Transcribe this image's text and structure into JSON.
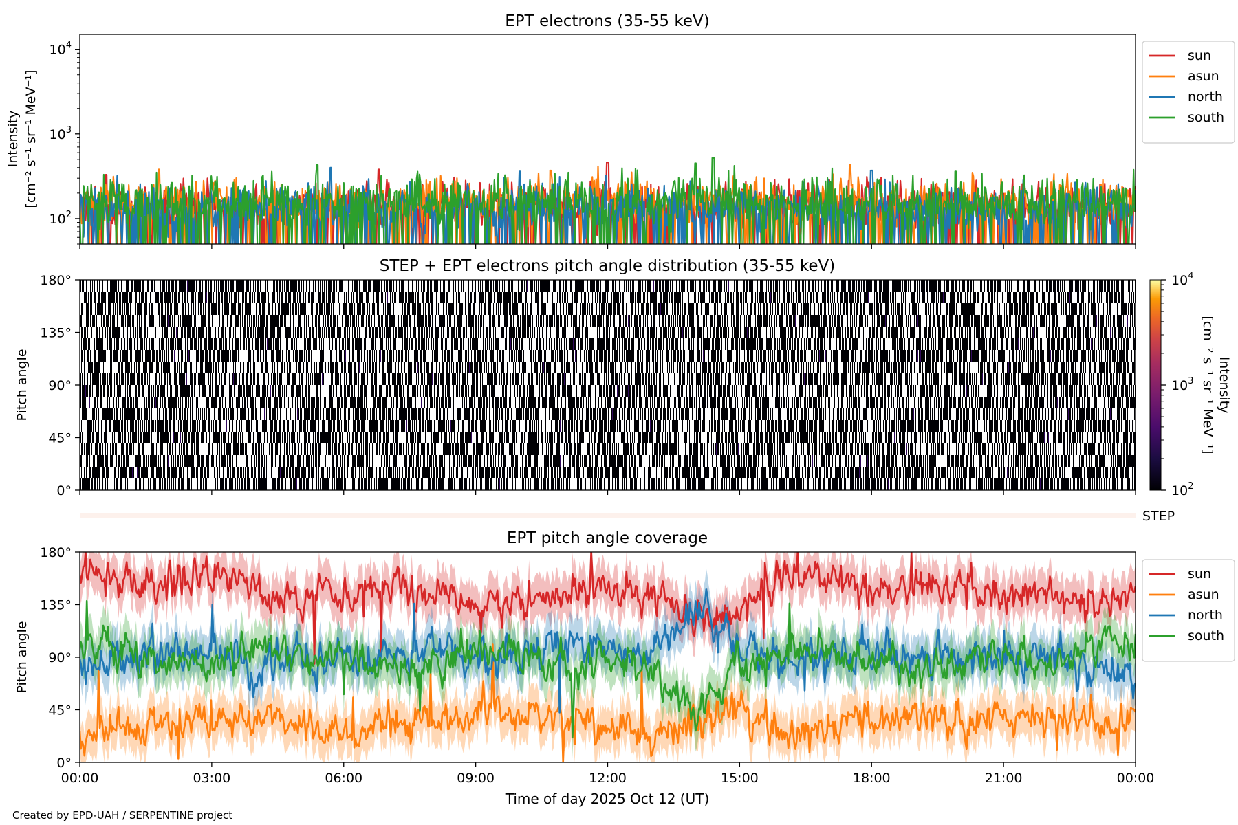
{
  "chart_data": [
    {
      "type": "line",
      "title": "EPT electrons (35-55 keV)",
      "ylabel_line1": "Intensity",
      "ylabel_line2": "[cm⁻² s⁻¹ sr⁻¹ MeV⁻¹]",
      "yscale": "log",
      "ylim": [
        50,
        15000
      ],
      "y_ticks": [
        {
          "value": 100,
          "base": "10",
          "exp": "2"
        },
        {
          "value": 1000,
          "base": "10",
          "exp": "3"
        },
        {
          "value": 10000,
          "base": "10",
          "exp": "4"
        }
      ],
      "xlim": [
        0,
        24
      ],
      "grid": false,
      "legend_placement": "outside-right-top",
      "series": [
        {
          "name": "sun",
          "color": "#d62728",
          "baseline": 150,
          "spread": 0.25,
          "peaks": [
            [
              12.0,
              460
            ],
            [
              6.8,
              380
            ],
            [
              0.6,
              330
            ]
          ]
        },
        {
          "name": "asun",
          "color": "#ff7f0e",
          "baseline": 160,
          "spread": 0.27,
          "peaks": [
            [
              1.8,
              380
            ],
            [
              17.5,
              430
            ],
            [
              10.7,
              370
            ]
          ]
        },
        {
          "name": "north",
          "color": "#1f77b4",
          "baseline": 140,
          "spread": 0.27,
          "peaks": [
            [
              5.7,
              400
            ],
            [
              18.0,
              370
            ],
            [
              10.0,
              360
            ]
          ]
        },
        {
          "name": "south",
          "color": "#2ca02c",
          "baseline": 165,
          "spread": 0.28,
          "peaks": [
            [
              14.4,
              520
            ],
            [
              5.4,
              430
            ],
            [
              14.0,
              450
            ],
            [
              19.9,
              360
            ]
          ]
        }
      ]
    },
    {
      "type": "heatmap",
      "title": "STEP + EPT electrons pitch angle distribution (35-55 keV)",
      "ylabel": "Pitch angle",
      "y_ticks": [
        "0°",
        "45°",
        "90°",
        "135°",
        "180°"
      ],
      "ylim": [
        0,
        180
      ],
      "xlim": [
        0,
        24
      ],
      "colorbar": {
        "scale": "log",
        "range": [
          100,
          10000
        ],
        "label_line1": "Intensity",
        "label_line2": "[cm⁻² s⁻¹ sr⁻¹ MeV⁻¹]",
        "ticks": [
          {
            "value": 100,
            "base": "10",
            "exp": "2"
          },
          {
            "value": 1000,
            "base": "10",
            "exp": "3"
          },
          {
            "value": 10000,
            "base": "10",
            "exp": "4"
          }
        ],
        "colormap": "inferno"
      },
      "step_strip_label": "STEP"
    },
    {
      "type": "line",
      "title": "EPT pitch angle coverage",
      "ylabel": "Pitch angle",
      "y_ticks": [
        "0°",
        "45°",
        "90°",
        "135°",
        "180°"
      ],
      "ylim": [
        0,
        180
      ],
      "xlim": [
        0,
        24
      ],
      "xlabel": "Time of day 2025 Oct 12 (UT)",
      "x_ticks": [
        "00:00",
        "03:00",
        "06:00",
        "09:00",
        "12:00",
        "15:00",
        "18:00",
        "21:00",
        "00:00"
      ],
      "legend_placement": "outside-right-top",
      "series": [
        {
          "name": "sun",
          "color": "#d62728",
          "x": [
            0,
            1,
            2,
            3,
            4,
            5,
            6,
            7,
            8,
            9,
            10,
            11,
            12,
            13,
            14,
            15,
            16,
            17,
            18,
            19,
            20,
            21,
            22,
            23,
            24
          ],
          "y": [
            160,
            150,
            155,
            160,
            145,
            140,
            145,
            150,
            140,
            130,
            140,
            145,
            150,
            140,
            120,
            130,
            160,
            160,
            140,
            150,
            145,
            140,
            140,
            135,
            140
          ]
        },
        {
          "name": "asun",
          "color": "#ff7f0e",
          "x": [
            0,
            1,
            2,
            3,
            4,
            5,
            6,
            7,
            8,
            9,
            10,
            11,
            12,
            13,
            14,
            15,
            16,
            17,
            18,
            19,
            20,
            21,
            22,
            23,
            24
          ],
          "y": [
            25,
            30,
            30,
            35,
            40,
            35,
            30,
            35,
            40,
            45,
            40,
            35,
            30,
            25,
            40,
            50,
            25,
            25,
            35,
            40,
            35,
            40,
            40,
            40,
            40
          ]
        },
        {
          "name": "north",
          "color": "#1f77b4",
          "x": [
            0,
            1,
            2,
            3,
            4,
            5,
            6,
            7,
            8,
            9,
            10,
            11,
            12,
            13,
            14,
            15,
            16,
            17,
            18,
            19,
            20,
            21,
            22,
            23,
            24
          ],
          "y": [
            85,
            90,
            95,
            95,
            80,
            90,
            85,
            90,
            100,
            85,
            95,
            100,
            95,
            90,
            130,
            100,
            85,
            90,
            100,
            90,
            90,
            85,
            90,
            80,
            75
          ]
        },
        {
          "name": "south",
          "color": "#2ca02c",
          "x": [
            0,
            1,
            2,
            3,
            4,
            5,
            6,
            7,
            8,
            9,
            10,
            11,
            12,
            13,
            14,
            15,
            16,
            17,
            18,
            19,
            20,
            21,
            22,
            23,
            24
          ],
          "y": [
            100,
            95,
            80,
            85,
            100,
            90,
            90,
            85,
            80,
            100,
            90,
            85,
            85,
            80,
            40,
            85,
            90,
            95,
            85,
            80,
            85,
            90,
            85,
            100,
            105
          ]
        }
      ]
    }
  ],
  "credit": "Created by EPD-UAH / SERPENTINE project"
}
